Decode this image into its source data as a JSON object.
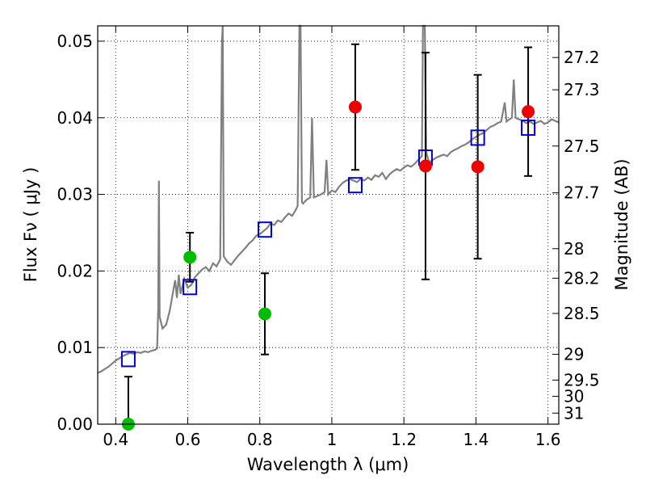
{
  "chart_data": {
    "type": "scatter",
    "xlabel": "Wavelength  λ (μm)",
    "ylabel": "Flux  Fν  ( μJy )",
    "ylabel_right": "Magnitude (AB)",
    "xlim": [
      0.35,
      1.63
    ],
    "ylim": [
      0.0,
      0.052
    ],
    "grid": true,
    "x_ticks": [
      {
        "value": 0.4,
        "label": "0.4"
      },
      {
        "value": 0.6,
        "label": "0.6"
      },
      {
        "value": 0.8,
        "label": "0.8"
      },
      {
        "value": 1.0,
        "label": "1"
      },
      {
        "value": 1.2,
        "label": "1.2"
      },
      {
        "value": 1.4,
        "label": "1.4"
      },
      {
        "value": 1.6,
        "label": "1.6"
      }
    ],
    "y_ticks": [
      {
        "value": 0.0,
        "label": "0.00"
      },
      {
        "value": 0.01,
        "label": "0.01"
      },
      {
        "value": 0.02,
        "label": "0.02"
      },
      {
        "value": 0.03,
        "label": "0.03"
      },
      {
        "value": 0.04,
        "label": "0.04"
      },
      {
        "value": 0.05,
        "label": "0.05"
      }
    ],
    "mag_ticks": [
      {
        "value": 27.2,
        "label": "27.2"
      },
      {
        "value": 27.3,
        "label": "27.3"
      },
      {
        "value": 27.5,
        "label": "27.5"
      },
      {
        "value": 27.7,
        "label": "27.7"
      },
      {
        "value": 28,
        "label": "28"
      },
      {
        "value": 28.2,
        "label": "28.2"
      },
      {
        "value": 28.5,
        "label": "28.5"
      },
      {
        "value": 29,
        "label": "29"
      },
      {
        "value": 29.5,
        "label": "29.5"
      },
      {
        "value": 30,
        "label": "30"
      },
      {
        "value": 31,
        "label": "31"
      }
    ],
    "colors": {
      "model": "#808080",
      "model_photometry": "#0000cc",
      "detections_optical": "#00bb00",
      "detections_nir": "#ee0000",
      "errorbar": "#000000"
    },
    "observed_optical": [
      {
        "x": 0.435,
        "y": 0.0,
        "err": 0.0062
      },
      {
        "x": 0.606,
        "y": 0.0218,
        "err": 0.0032
      },
      {
        "x": 0.814,
        "y": 0.0144,
        "err": 0.0053
      }
    ],
    "observed_nir": [
      {
        "x": 1.065,
        "y": 0.0414,
        "err": 0.0082
      },
      {
        "x": 1.26,
        "y": 0.0337,
        "err": 0.0148
      },
      {
        "x": 1.405,
        "y": 0.0336,
        "err": 0.012
      },
      {
        "x": 1.545,
        "y": 0.0408,
        "err": 0.0084
      }
    ],
    "model_photometry": [
      {
        "x": 0.435,
        "y": 0.0085
      },
      {
        "x": 0.606,
        "y": 0.0179
      },
      {
        "x": 0.814,
        "y": 0.0254
      },
      {
        "x": 1.065,
        "y": 0.0312
      },
      {
        "x": 1.26,
        "y": 0.0348
      },
      {
        "x": 1.405,
        "y": 0.0374
      },
      {
        "x": 1.545,
        "y": 0.0387
      }
    ],
    "model_spectrum": [
      [
        0.35,
        0.0067
      ],
      [
        0.36,
        0.0069
      ],
      [
        0.37,
        0.0072
      ],
      [
        0.38,
        0.0075
      ],
      [
        0.39,
        0.0079
      ],
      [
        0.4,
        0.0083
      ],
      [
        0.41,
        0.0086
      ],
      [
        0.42,
        0.0089
      ],
      [
        0.43,
        0.0091
      ],
      [
        0.44,
        0.0093
      ],
      [
        0.45,
        0.0092
      ],
      [
        0.46,
        0.0094
      ],
      [
        0.47,
        0.0093
      ],
      [
        0.48,
        0.0095
      ],
      [
        0.49,
        0.0094
      ],
      [
        0.5,
        0.0096
      ],
      [
        0.51,
        0.0097
      ],
      [
        0.515,
        0.0099
      ],
      [
        0.518,
        0.015
      ],
      [
        0.52,
        0.0318
      ],
      [
        0.522,
        0.014
      ],
      [
        0.53,
        0.0125
      ],
      [
        0.54,
        0.013
      ],
      [
        0.55,
        0.0148
      ],
      [
        0.56,
        0.0175
      ],
      [
        0.565,
        0.0188
      ],
      [
        0.57,
        0.0165
      ],
      [
        0.575,
        0.0195
      ],
      [
        0.58,
        0.017
      ],
      [
        0.59,
        0.019
      ],
      [
        0.6,
        0.0178
      ],
      [
        0.61,
        0.0182
      ],
      [
        0.62,
        0.0192
      ],
      [
        0.63,
        0.0197
      ],
      [
        0.64,
        0.0202
      ],
      [
        0.65,
        0.0205
      ],
      [
        0.66,
        0.02
      ],
      [
        0.67,
        0.021
      ],
      [
        0.68,
        0.0206
      ],
      [
        0.69,
        0.0215
      ],
      [
        0.695,
        0.05
      ],
      [
        0.697,
        0.052
      ],
      [
        0.7,
        0.0219
      ],
      [
        0.71,
        0.0212
      ],
      [
        0.72,
        0.0208
      ],
      [
        0.73,
        0.0214
      ],
      [
        0.74,
        0.022
      ],
      [
        0.75,
        0.0225
      ],
      [
        0.76,
        0.023
      ],
      [
        0.77,
        0.0236
      ],
      [
        0.78,
        0.024
      ],
      [
        0.79,
        0.0246
      ],
      [
        0.8,
        0.0248
      ],
      [
        0.81,
        0.0252
      ],
      [
        0.82,
        0.0256
      ],
      [
        0.83,
        0.0262
      ],
      [
        0.84,
        0.026
      ],
      [
        0.85,
        0.0266
      ],
      [
        0.86,
        0.0264
      ],
      [
        0.87,
        0.027
      ],
      [
        0.88,
        0.0275
      ],
      [
        0.89,
        0.0272
      ],
      [
        0.9,
        0.028
      ],
      [
        0.905,
        0.0285
      ],
      [
        0.91,
        0.052
      ],
      [
        0.913,
        0.052
      ],
      [
        0.917,
        0.029
      ],
      [
        0.92,
        0.0288
      ],
      [
        0.93,
        0.0293
      ],
      [
        0.94,
        0.0296
      ],
      [
        0.945,
        0.04
      ],
      [
        0.95,
        0.0296
      ],
      [
        0.96,
        0.0298
      ],
      [
        0.97,
        0.03
      ],
      [
        0.98,
        0.0303
      ],
      [
        0.985,
        0.0345
      ],
      [
        0.99,
        0.03
      ],
      [
        1.0,
        0.0305
      ],
      [
        1.01,
        0.0303
      ],
      [
        1.02,
        0.031
      ],
      [
        1.03,
        0.0315
      ],
      [
        1.04,
        0.0318
      ],
      [
        1.05,
        0.032
      ],
      [
        1.06,
        0.0318
      ],
      [
        1.07,
        0.0316
      ],
      [
        1.08,
        0.032
      ],
      [
        1.09,
        0.0318
      ],
      [
        1.1,
        0.0322
      ],
      [
        1.11,
        0.0319
      ],
      [
        1.12,
        0.0325
      ],
      [
        1.13,
        0.0323
      ],
      [
        1.14,
        0.0328
      ],
      [
        1.15,
        0.032
      ],
      [
        1.16,
        0.0326
      ],
      [
        1.17,
        0.033
      ],
      [
        1.18,
        0.0333
      ],
      [
        1.19,
        0.0331
      ],
      [
        1.2,
        0.0335
      ],
      [
        1.21,
        0.0338
      ],
      [
        1.22,
        0.0336
      ],
      [
        1.23,
        0.034
      ],
      [
        1.24,
        0.0345
      ],
      [
        1.25,
        0.035
      ],
      [
        1.253,
        0.052
      ],
      [
        1.258,
        0.052
      ],
      [
        1.262,
        0.0355
      ],
      [
        1.27,
        0.0342
      ],
      [
        1.28,
        0.0345
      ],
      [
        1.29,
        0.0348
      ],
      [
        1.3,
        0.035
      ],
      [
        1.31,
        0.0352
      ],
      [
        1.32,
        0.035
      ],
      [
        1.33,
        0.0355
      ],
      [
        1.34,
        0.0358
      ],
      [
        1.35,
        0.036
      ],
      [
        1.36,
        0.0363
      ],
      [
        1.37,
        0.0365
      ],
      [
        1.38,
        0.0368
      ],
      [
        1.39,
        0.0372
      ],
      [
        1.4,
        0.0375
      ],
      [
        1.41,
        0.0378
      ],
      [
        1.42,
        0.038
      ],
      [
        1.43,
        0.0384
      ],
      [
        1.44,
        0.0388
      ],
      [
        1.45,
        0.039
      ],
      [
        1.46,
        0.0393
      ],
      [
        1.47,
        0.0395
      ],
      [
        1.48,
        0.042
      ],
      [
        1.485,
        0.0395
      ],
      [
        1.49,
        0.0397
      ],
      [
        1.5,
        0.04
      ],
      [
        1.505,
        0.045
      ],
      [
        1.51,
        0.04
      ],
      [
        1.52,
        0.0398
      ],
      [
        1.53,
        0.0396
      ],
      [
        1.54,
        0.0393
      ],
      [
        1.55,
        0.0395
      ],
      [
        1.56,
        0.0392
      ],
      [
        1.57,
        0.0394
      ],
      [
        1.58,
        0.0396
      ],
      [
        1.59,
        0.0392
      ],
      [
        1.6,
        0.0394
      ],
      [
        1.61,
        0.0398
      ],
      [
        1.62,
        0.0396
      ],
      [
        1.63,
        0.0394
      ]
    ]
  }
}
